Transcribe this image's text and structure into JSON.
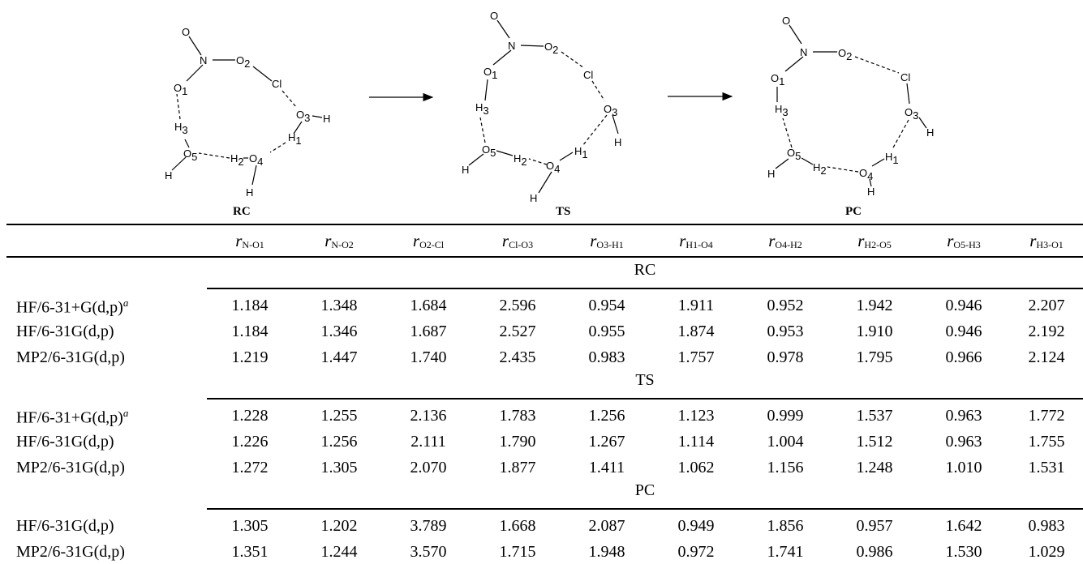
{
  "figure": {
    "labels": {
      "rc": "RC",
      "ts": "TS",
      "pc": "PC"
    },
    "atoms": {
      "o": "O",
      "n": "N",
      "o1": "O",
      "o1_sub": "1",
      "o2": "O",
      "o2_sub": "2",
      "cl": "Cl",
      "o3": "O",
      "o3_sub": "3",
      "h": "H",
      "h1": "H",
      "h1_sub": "1",
      "o4": "O",
      "o4_sub": "4",
      "h2": "H",
      "h2_sub": "2",
      "o5": "O",
      "o5_sub": "5",
      "h3": "H",
      "h3_sub": "3"
    }
  },
  "table": {
    "columns": [
      {
        "r": "r",
        "sub": "N-O1"
      },
      {
        "r": "r",
        "sub": "N-O2"
      },
      {
        "r": "r",
        "sub": "O2-Cl"
      },
      {
        "r": "r",
        "sub": "Cl-O3"
      },
      {
        "r": "r",
        "sub": "O3-H1"
      },
      {
        "r": "r",
        "sub": "H1-O4"
      },
      {
        "r": "r",
        "sub": "O4-H2"
      },
      {
        "r": "r",
        "sub": "H2-O5"
      },
      {
        "r": "r",
        "sub": "O5-H3"
      },
      {
        "r": "r",
        "sub": "H3-O1"
      }
    ],
    "footnote_mark": "a",
    "sections": [
      {
        "title": "RC",
        "rows": [
          {
            "method": "HF/6-31+G(d,p)",
            "footnote": true,
            "values": [
              "1.184",
              "1.348",
              "1.684",
              "2.596",
              "0.954",
              "1.911",
              "0.952",
              "1.942",
              "0.946",
              "2.207"
            ]
          },
          {
            "method": "HF/6-31G(d,p)",
            "footnote": false,
            "values": [
              "1.184",
              "1.346",
              "1.687",
              "2.527",
              "0.955",
              "1.874",
              "0.953",
              "1.910",
              "0.946",
              "2.192"
            ]
          },
          {
            "method": "MP2/6-31G(d,p)",
            "footnote": false,
            "values": [
              "1.219",
              "1.447",
              "1.740",
              "2.435",
              "0.983",
              "1.757",
              "0.978",
              "1.795",
              "0.966",
              "2.124"
            ]
          }
        ]
      },
      {
        "title": "TS",
        "rows": [
          {
            "method": "HF/6-31+G(d,p)",
            "footnote": true,
            "values": [
              "1.228",
              "1.255",
              "2.136",
              "1.783",
              "1.256",
              "1.123",
              "0.999",
              "1.537",
              "0.963",
              "1.772"
            ]
          },
          {
            "method": "HF/6-31G(d,p)",
            "footnote": false,
            "values": [
              "1.226",
              "1.256",
              "2.111",
              "1.790",
              "1.267",
              "1.114",
              "1.004",
              "1.512",
              "0.963",
              "1.755"
            ]
          },
          {
            "method": "MP2/6-31G(d,p)",
            "footnote": false,
            "values": [
              "1.272",
              "1.305",
              "2.070",
              "1.877",
              "1.411",
              "1.062",
              "1.156",
              "1.248",
              "1.010",
              "1.531"
            ]
          }
        ]
      },
      {
        "title": "PC",
        "rows": [
          {
            "method": "HF/6-31G(d,p)",
            "footnote": false,
            "values": [
              "1.305",
              "1.202",
              "3.789",
              "1.668",
              "2.087",
              "0.949",
              "1.856",
              "0.957",
              "1.642",
              "0.983"
            ]
          },
          {
            "method": "MP2/6-31G(d,p)",
            "footnote": false,
            "values": [
              "1.351",
              "1.244",
              "3.570",
              "1.715",
              "1.948",
              "0.972",
              "1.741",
              "0.986",
              "1.530",
              "1.029"
            ]
          }
        ]
      }
    ]
  }
}
